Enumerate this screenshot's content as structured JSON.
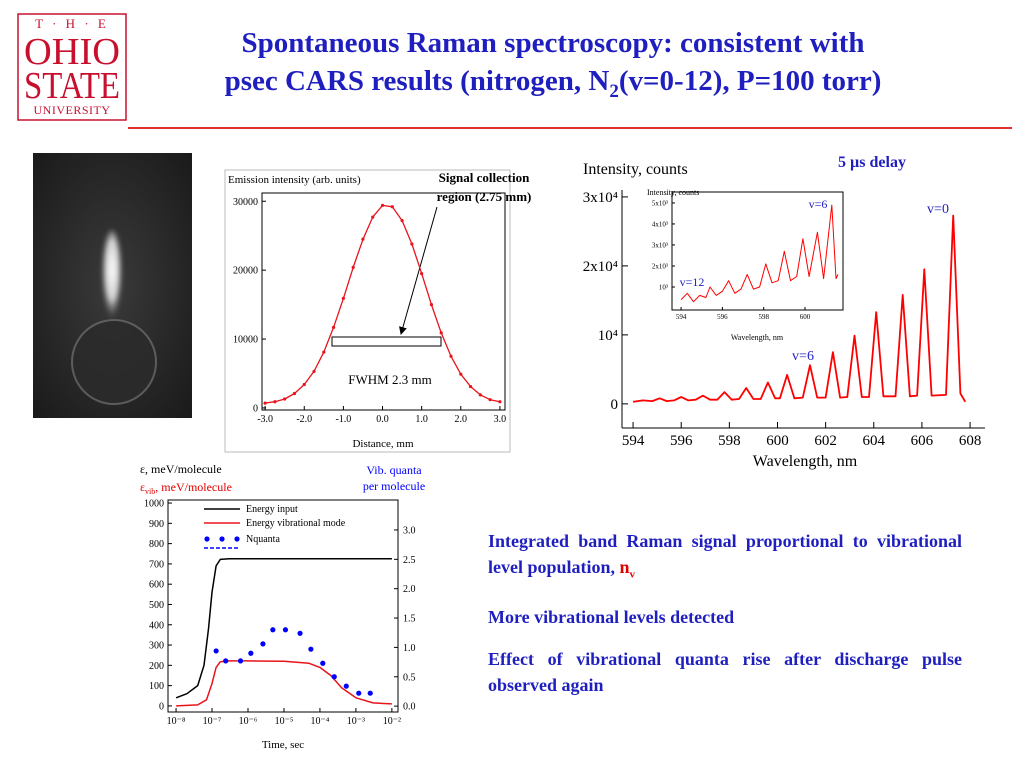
{
  "header": {
    "logo": [
      "T · H · E",
      "OHIO",
      "STATE",
      "UNIVERSITY"
    ],
    "title_line1": "Spontaneous Raman spectroscopy: consistent with",
    "title_line2": [
      "psec CARS results (nitrogen, N",
      "2",
      "(v=0-12), P=100 torr)"
    ]
  },
  "bullets": [
    [
      "Integrated band Raman signal proportional to vibrational level population, ",
      "n",
      "v"
    ],
    [
      "More vibrational levels detected"
    ],
    [
      "Effect of vibrational quanta rise after discharge pulse observed again"
    ]
  ],
  "chart_data": [
    {
      "type": "line",
      "ylabel": "Emission intensity (arb. units)",
      "xlabel": "Distance, mm",
      "annotations": [
        "FWHM 2.3 mm"
      ],
      "callout": [
        "Signal  collection",
        "region (2.75 mm)"
      ],
      "xlim": [
        -3.08,
        3.13
      ],
      "ylim": [
        -300,
        31200
      ],
      "xticks": [
        {
          "value": -3,
          "label": "-3.0"
        },
        {
          "value": -2,
          "label": "-2.0"
        },
        {
          "value": -1,
          "label": "-1.0"
        },
        {
          "value": 0,
          "label": "0.0"
        },
        {
          "value": 1,
          "label": "1.0"
        },
        {
          "value": 2,
          "label": "2.0"
        },
        {
          "value": 3,
          "label": "3.0"
        }
      ],
      "yticks": [
        0,
        10000,
        20000,
        30000
      ],
      "series": [
        {
          "color": "#e8141c",
          "markers": true,
          "x": [
            -3,
            -2.75,
            -2.5,
            -2.25,
            -2,
            -1.75,
            -1.5,
            -1.25,
            -1,
            -0.75,
            -0.5,
            -0.25,
            0,
            0.25,
            0.5,
            0.75,
            1,
            1.25,
            1.5,
            1.75,
            2,
            2.25,
            2.5,
            2.75,
            3
          ],
          "values": [
            700,
            900,
            1300,
            2100,
            3400,
            5300,
            8100,
            11700,
            15900,
            20400,
            24500,
            27700,
            29400,
            29200,
            27200,
            23800,
            19500,
            15000,
            10900,
            7500,
            4900,
            3100,
            1900,
            1200,
            900
          ]
        }
      ]
    },
    {
      "type": "line",
      "ylabel": "Intensity, counts",
      "xlabel": "Wavelength, nm",
      "annotations": [
        "5 µs delay",
        "v=0",
        "v=6"
      ],
      "xlim": [
        593.54,
        608.62
      ],
      "ylim": [
        -3500,
        31000
      ],
      "xticks": [
        594,
        596,
        598,
        600,
        602,
        604,
        606,
        608
      ],
      "yticks": [
        0,
        {
          "value": 10000,
          "label": "10⁴"
        },
        {
          "value": 20000,
          "label": "2x10⁴"
        },
        {
          "value": 30000,
          "label": "3x10⁴"
        }
      ],
      "series": [
        {
          "color": "#ff0000",
          "x": [
            594.0,
            594.4,
            594.8,
            595.1,
            595.4,
            595.7,
            596.0,
            596.3,
            596.6,
            596.9,
            597.2,
            597.5,
            597.8,
            598.1,
            598.4,
            598.7,
            599.0,
            599.3,
            599.6,
            599.9,
            600.1,
            600.4,
            600.7,
            601.05,
            601.35,
            601.65,
            602.0,
            602.3,
            602.6,
            602.9,
            603.2,
            603.5,
            603.8,
            604.1,
            604.4,
            604.9,
            605.2,
            605.5,
            605.8,
            606.1,
            606.4,
            607.0,
            607.3,
            607.6,
            607.8
          ],
          "values": [
            300,
            500,
            400,
            800,
            400,
            500,
            1000,
            500,
            600,
            1200,
            600,
            600,
            1700,
            600,
            700,
            2300,
            700,
            700,
            3100,
            800,
            800,
            4200,
            800,
            900,
            5600,
            900,
            900,
            7500,
            900,
            1000,
            9900,
            1000,
            1000,
            13300,
            1100,
            1100,
            15800,
            1100,
            1200,
            19500,
            1200,
            1300,
            27300,
            1500,
            300
          ]
        }
      ]
    },
    {
      "type": "line",
      "ylabel": "Intensity, counts",
      "xlabel": "Wavelength, nm",
      "annotations": [
        "v=12",
        "v=6"
      ],
      "xlim": [
        593.56,
        601.84
      ],
      "ylim": [
        -95,
        5520
      ],
      "xticks": [
        594,
        596,
        598,
        600
      ],
      "yticks": [
        {
          "value": 1000,
          "label": "10³"
        },
        {
          "value": 2000,
          "label": "2x10³"
        },
        {
          "value": 3000,
          "label": "3x10³"
        },
        {
          "value": 4000,
          "label": "4x10³"
        },
        {
          "value": 5000,
          "label": "5x10³"
        }
      ],
      "series": [
        {
          "color": "#ff0000",
          "x": [
            594.0,
            594.3,
            594.6,
            594.9,
            595.2,
            595.4,
            595.7,
            596.0,
            596.3,
            596.6,
            596.9,
            597.2,
            597.5,
            597.8,
            598.1,
            598.4,
            598.7,
            599.0,
            599.3,
            599.6,
            599.9,
            600.2,
            600.6,
            600.9,
            601.3,
            601.5,
            601.6
          ],
          "values": [
            400,
            700,
            300,
            600,
            500,
            1000,
            600,
            800,
            1300,
            700,
            900,
            1600,
            900,
            1000,
            2100,
            1200,
            1300,
            2700,
            1300,
            1500,
            3300,
            1500,
            3600,
            1400,
            4900,
            1400,
            1600
          ]
        }
      ]
    },
    {
      "type": "line",
      "xlog": true,
      "xlabel": "Time, sec",
      "ylabel": "ε, meV/molecule",
      "ylabel_vib": [
        "ε",
        "vib",
        ", meV/molecule"
      ],
      "y2label": [
        "Vib. quanta",
        "per molecule"
      ],
      "legend": true,
      "xlim": [
        5.97e-09,
        0.0148
      ],
      "ylim": [
        -30,
        1015
      ],
      "y2lim": [
        -0.1,
        3.51
      ],
      "xticks": [
        {
          "value": 1e-08,
          "label": "10⁻⁸"
        },
        {
          "value": 1e-07,
          "label": "10⁻⁷"
        },
        {
          "value": 1e-06,
          "label": "10⁻⁶"
        },
        {
          "value": 1e-05,
          "label": "10⁻⁵"
        },
        {
          "value": 0.0001,
          "label": "10⁻⁴"
        },
        {
          "value": 0.001,
          "label": "10⁻³"
        },
        {
          "value": 0.01,
          "label": "10⁻²"
        }
      ],
      "yticks": [
        0,
        100,
        200,
        300,
        400,
        500,
        600,
        700,
        800,
        900,
        1000
      ],
      "y2ticks": [
        {
          "value": 0,
          "label": "0.0"
        },
        0.5,
        {
          "value": 1,
          "label": "1.0"
        },
        1.5,
        {
          "value": 2,
          "label": "2.0"
        },
        2.5,
        {
          "value": 3,
          "label": "3.0"
        }
      ],
      "series": [
        {
          "name": "Energy input",
          "color": "#000000",
          "x": [
            1e-08,
            2e-08,
            4e-08,
            6e-08,
            8e-08,
            1e-07,
            1.3e-07,
            1.7e-07,
            3e-07,
            1e-06,
            0.0001,
            0.01
          ],
          "values": [
            40,
            60,
            100,
            200,
            380,
            560,
            690,
            722,
            725,
            725,
            725,
            725
          ]
        },
        {
          "name": "Energy vibrational mode",
          "color": "#e8141c",
          "x": [
            1e-08,
            4e-08,
            7e-08,
            1e-07,
            1.3e-07,
            1.7e-07,
            3e-07,
            1e-06,
            1e-05,
            5e-05,
            0.0001,
            0.0002,
            0.0004,
            0.001,
            0.003,
            0.01
          ],
          "values": [
            0,
            5,
            30,
            110,
            190,
            218,
            222,
            222,
            220,
            210,
            190,
            150,
            90,
            40,
            15,
            10
          ]
        },
        {
          "name": "Nquanta",
          "color": "#0000ff",
          "axis": "y2",
          "style": "dots",
          "x": [
            1.3e-07,
            2.4e-07,
            6.2e-07,
            1.2e-06,
            2.6e-06,
            4.9e-06,
            1.1e-05,
            2.8e-05,
            5.6e-05,
            0.00012,
            0.00025,
            0.00054,
            0.0012,
            0.0025
          ],
          "values": [
            0.94,
            0.77,
            0.77,
            0.9,
            1.06,
            1.3,
            1.3,
            1.24,
            0.97,
            0.73,
            0.5,
            0.34,
            0.22,
            0.22
          ]
        }
      ]
    }
  ]
}
